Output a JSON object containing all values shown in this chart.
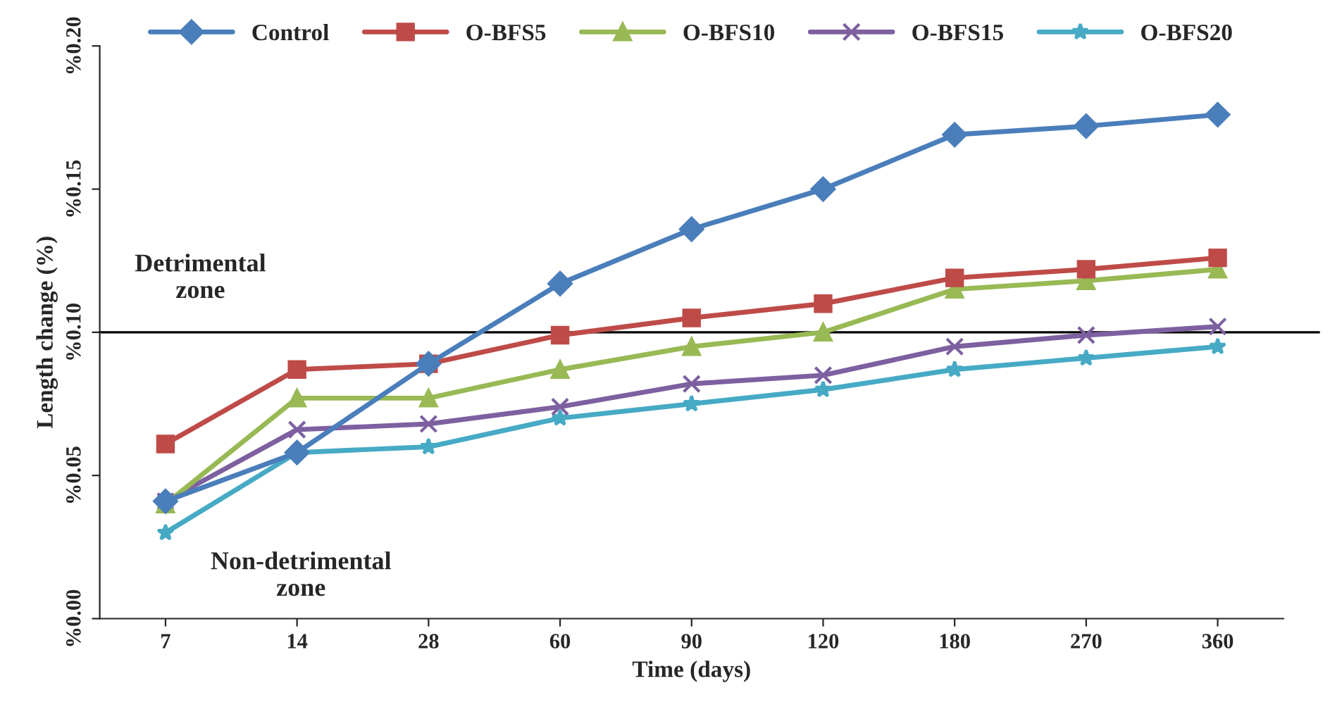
{
  "chart_data": {
    "type": "line",
    "xlabel": "Time (days)",
    "ylabel": "Length change (%)",
    "categories": [
      "7",
      "14",
      "28",
      "60",
      "90",
      "120",
      "180",
      "270",
      "360"
    ],
    "series": [
      {
        "name": "Control",
        "color": "#4a7ebb",
        "marker": "diamond",
        "values": [
          0.041,
          0.058,
          0.089,
          0.117,
          0.136,
          0.15,
          0.169,
          0.172,
          0.176
        ]
      },
      {
        "name": "O-BFS5",
        "color": "#be4b48",
        "marker": "square",
        "values": [
          0.061,
          0.087,
          0.089,
          0.099,
          0.105,
          0.11,
          0.119,
          0.122,
          0.126
        ]
      },
      {
        "name": "O-BFS10",
        "color": "#98b954",
        "marker": "triangle",
        "values": [
          0.04,
          0.077,
          0.077,
          0.087,
          0.095,
          0.1,
          0.115,
          0.118,
          0.122
        ]
      },
      {
        "name": "O-BFS15",
        "color": "#7d60a0",
        "marker": "cross",
        "values": [
          0.041,
          0.066,
          0.068,
          0.074,
          0.082,
          0.085,
          0.095,
          0.099,
          0.102
        ]
      },
      {
        "name": "O-BFS20",
        "color": "#46aac5",
        "marker": "star",
        "values": [
          0.03,
          0.058,
          0.06,
          0.07,
          0.075,
          0.08,
          0.087,
          0.091,
          0.095
        ]
      }
    ],
    "ylim": [
      0,
      0.2
    ],
    "yticks": [
      {
        "value": 0,
        "label": "%0.00"
      },
      {
        "value": 0.05,
        "label": "%0.05"
      },
      {
        "value": 0.1,
        "label": "%0.10"
      },
      {
        "value": 0.15,
        "label": "%0.15"
      },
      {
        "value": 0.2,
        "label": "%0.20"
      }
    ],
    "ref_lines": [
      {
        "axis": "y",
        "value": 0.1,
        "color": "#000000"
      }
    ],
    "annotations": [
      "Detrimental\nzone",
      "Non-detrimental\nzone"
    ],
    "legend": "top",
    "grid": false,
    "line_style": "solid"
  }
}
